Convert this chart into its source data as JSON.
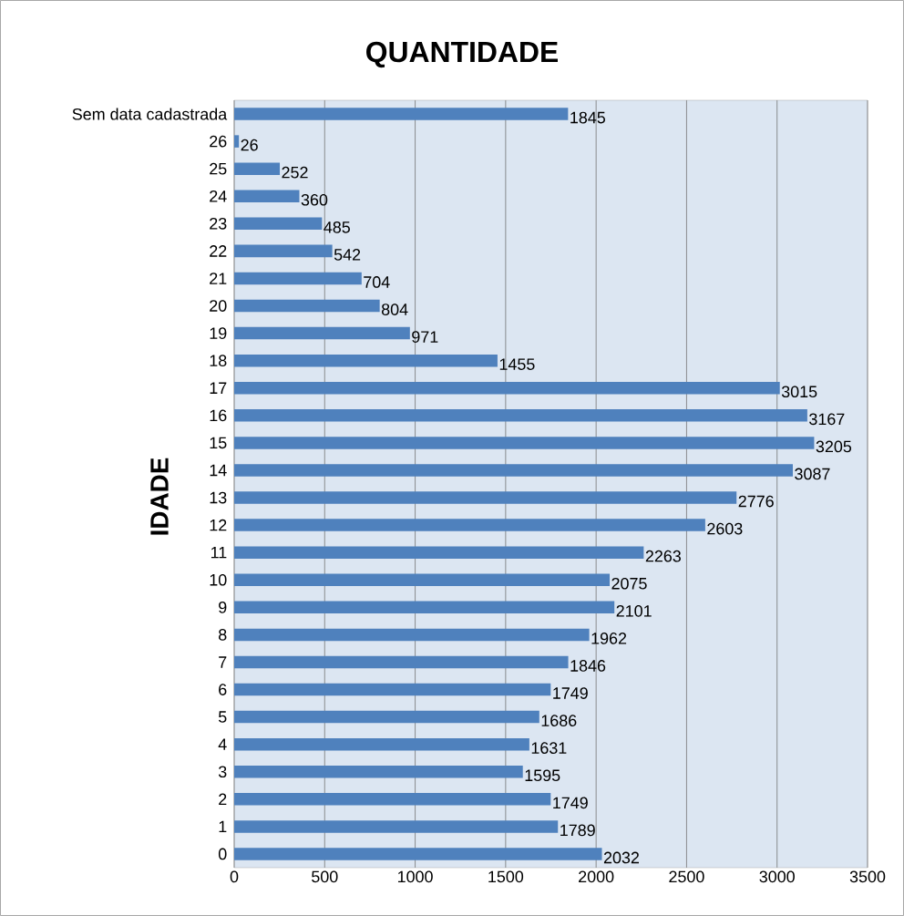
{
  "chart_data": {
    "type": "bar",
    "orientation": "horizontal",
    "title": "QUANTIDADE",
    "ylabel": "IDADE",
    "categories": [
      "Sem data cadastrada",
      "26",
      "25",
      "24",
      "23",
      "22",
      "21",
      "20",
      "19",
      "18",
      "17",
      "16",
      "15",
      "14",
      "13",
      "12",
      "11",
      "10",
      "9",
      "8",
      "7",
      "6",
      "5",
      "4",
      "3",
      "2",
      "1",
      "0"
    ],
    "values": [
      1845,
      26,
      252,
      360,
      485,
      542,
      704,
      804,
      971,
      1455,
      3015,
      3167,
      3205,
      3087,
      2776,
      2603,
      2263,
      2075,
      2101,
      1962,
      1846,
      1749,
      1686,
      1631,
      1595,
      1749,
      1789,
      2032
    ],
    "color": "#4f81bd",
    "xlim": [
      0,
      3500
    ],
    "xticks": [
      0,
      500,
      1000,
      1500,
      2000,
      2500,
      3000,
      3500
    ],
    "grid": "x",
    "data_labels": true
  }
}
